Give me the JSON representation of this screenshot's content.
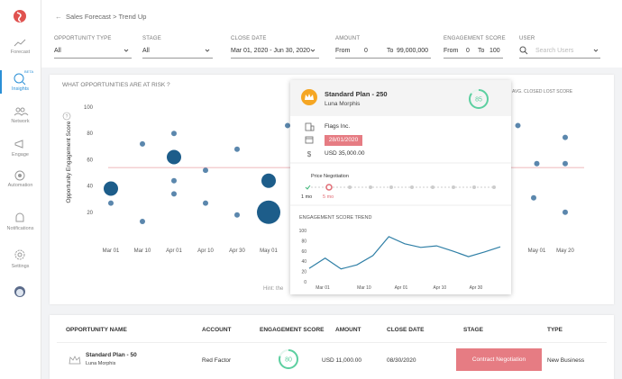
{
  "sidebar": {
    "items": [
      {
        "label": "Forecast"
      },
      {
        "label": "Insights",
        "badge": "BETA"
      },
      {
        "label": "Network"
      },
      {
        "label": "Engage"
      },
      {
        "label": "Automation"
      },
      {
        "label": "Notifications"
      },
      {
        "label": "Settings"
      }
    ]
  },
  "header": {
    "breadcrumb": [
      "Sales Forecast",
      "Trend Up"
    ],
    "separator": ">"
  },
  "filters": {
    "opportunity_type": {
      "label": "OPPORTUNITY TYPE",
      "value": "All"
    },
    "stage": {
      "label": "STAGE",
      "value": "All"
    },
    "close_date": {
      "label": "CLOSE DATE",
      "value": "Mar 01, 2020 - Jun 30, 2020"
    },
    "amount": {
      "label": "AMOUNT",
      "from_label": "From",
      "from": 0,
      "to_label": "To",
      "to": {
        "value": 99000000,
        "label": "99,000,000"
      }
    },
    "engagement_score": {
      "label": "ENGAGEMENT SCORE",
      "from_label": "From",
      "from": 0,
      "to_label": "To",
      "to": 100
    },
    "user": {
      "label": "USER",
      "placeholder": "Search Users"
    }
  },
  "chart_data": [
    {
      "type": "scatter",
      "title": "WHAT OPPORTUNITIES ARE AT RISK ?",
      "help": "?",
      "ylabel": "Opportunity Engagement Score",
      "hint": "Hint: the",
      "xlim": [
        0,
        16
      ],
      "ylim": [
        0,
        100
      ],
      "xticks": [
        {
          "value": 1,
          "label": "Mar 01"
        },
        {
          "value": 2,
          "label": "Mar 10"
        },
        {
          "value": 3,
          "label": "Apr 01"
        },
        {
          "value": 4,
          "label": "Apr 10"
        },
        {
          "value": 5,
          "label": "Apr 30"
        },
        {
          "value": 6,
          "label": "May 01"
        },
        {
          "value": 14.5,
          "label": "May 01"
        },
        {
          "value": 15.4,
          "label": "May 20"
        }
      ],
      "yticks": [
        20,
        40,
        60,
        80,
        100
      ],
      "series": [
        {
          "color": "#1d5d8a",
          "x": [
            1,
            3,
            6,
            6
          ],
          "values": [
            38,
            62,
            44,
            20
          ],
          "size": [
            8,
            8,
            8,
            13
          ]
        },
        {
          "color": "#5b87ad",
          "x": [
            1,
            2,
            2,
            3,
            3,
            3,
            4,
            4,
            5,
            5,
            6.6,
            13.9,
            14.5,
            15.4,
            15.4,
            14.4,
            15.4
          ],
          "values": [
            27,
            72,
            13,
            80,
            44,
            34,
            52,
            27,
            68,
            18,
            86,
            86,
            57,
            77,
            57,
            31,
            20
          ],
          "size": [
            3,
            3,
            3,
            3,
            3,
            3,
            3,
            3,
            3,
            3,
            3,
            3,
            3,
            3,
            3,
            3,
            3
          ]
        }
      ],
      "reference_line": {
        "name": "AVG. CLOSED LOST SCORE",
        "value": 54,
        "color": "#e8a0a6"
      }
    },
    {
      "type": "line",
      "title": "ENGAGEMENT SCORE TREND",
      "xlim": [
        0,
        12
      ],
      "ylim": [
        0,
        100
      ],
      "x": [
        0,
        1,
        2,
        3,
        4,
        5,
        6,
        7,
        8,
        9,
        10,
        11,
        12
      ],
      "values": [
        26,
        46,
        25,
        33,
        51,
        88,
        74,
        67,
        70,
        60,
        49,
        58,
        68
      ],
      "color": "#2f7fa6",
      "xticks": [
        {
          "value": 0.85,
          "label": "Mar 01"
        },
        {
          "value": 3.45,
          "label": "Mar 10"
        },
        {
          "value": 5.77,
          "label": "Apr 01"
        },
        {
          "value": 8.2,
          "label": "Apr 10"
        },
        {
          "value": 10.47,
          "label": "Apr 30"
        }
      ],
      "yticks": [
        0,
        20,
        40,
        60,
        80,
        100
      ]
    }
  ],
  "popup": {
    "title": "Standard Plan - 250",
    "owner": "Luna Morphis",
    "score": 85,
    "account": "Flags Inc.",
    "date": "28/01/2020",
    "amount": "USD 35,000.00",
    "stage": "Price Negotiation",
    "step_labels": [
      "1 mo",
      "5 mo"
    ]
  },
  "table": {
    "headers": [
      "OPPORTUNITY NAME",
      "ACCOUNT",
      "ENGAGEMENT SCORE",
      "AMOUNT",
      "CLOSE DATE",
      "STAGE",
      "TYPE"
    ],
    "rows": [
      {
        "name": "Standard Plan - 50",
        "owner": "Luna Morphis",
        "account": "Red Factor",
        "score": 80,
        "amount": "USD 11,000.00",
        "close_date": "08/30/2020",
        "stage": "Contract Negotiation",
        "type": "New Business"
      }
    ]
  }
}
